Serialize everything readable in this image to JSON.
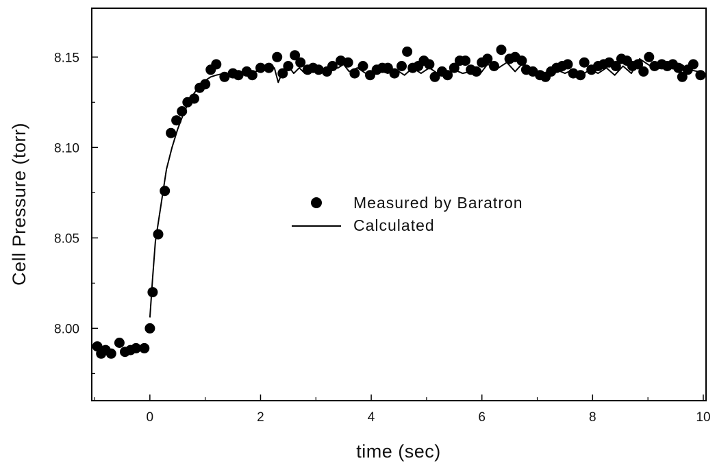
{
  "chart_data": {
    "type": "scatter",
    "title": "",
    "xlabel": "time (sec)",
    "ylabel": "Cell Pressure (torr)",
    "xlim": [
      -1.05,
      10.05
    ],
    "ylim": [
      7.96,
      8.177
    ],
    "x_ticks": [
      0,
      2,
      4,
      6,
      8,
      10
    ],
    "x_tick_labels": [
      "0",
      "2",
      "4",
      "6",
      "8",
      "10"
    ],
    "y_ticks": [
      8.0,
      8.05,
      8.1,
      8.15
    ],
    "y_tick_labels": [
      "8.00",
      "8.05",
      "8.10",
      "8.15"
    ],
    "grid": false,
    "legend_position": "center",
    "series": [
      {
        "name": "Measured by Baratron",
        "kind": "scatter",
        "color": "#000000",
        "points": [
          [
            -0.95,
            7.99
          ],
          [
            -0.88,
            7.986
          ],
          [
            -0.8,
            7.988
          ],
          [
            -0.7,
            7.986
          ],
          [
            -0.55,
            7.992
          ],
          [
            -0.45,
            7.987
          ],
          [
            -0.35,
            7.988
          ],
          [
            -0.25,
            7.989
          ],
          [
            -0.1,
            7.989
          ],
          [
            0.0,
            8.0
          ],
          [
            0.05,
            8.02
          ],
          [
            0.15,
            8.052
          ],
          [
            0.27,
            8.076
          ],
          [
            0.38,
            8.108
          ],
          [
            0.48,
            8.115
          ],
          [
            0.58,
            8.12
          ],
          [
            0.68,
            8.125
          ],
          [
            0.8,
            8.127
          ],
          [
            0.9,
            8.133
          ],
          [
            1.0,
            8.135
          ],
          [
            1.1,
            8.143
          ],
          [
            1.2,
            8.146
          ],
          [
            1.35,
            8.139
          ],
          [
            1.5,
            8.141
          ],
          [
            1.6,
            8.14
          ],
          [
            1.75,
            8.142
          ],
          [
            1.85,
            8.14
          ],
          [
            2.0,
            8.144
          ],
          [
            2.15,
            8.144
          ],
          [
            2.3,
            8.15
          ],
          [
            2.4,
            8.141
          ],
          [
            2.5,
            8.145
          ],
          [
            2.62,
            8.151
          ],
          [
            2.72,
            8.147
          ],
          [
            2.85,
            8.143
          ],
          [
            2.95,
            8.144
          ],
          [
            3.05,
            8.143
          ],
          [
            3.2,
            8.142
          ],
          [
            3.3,
            8.145
          ],
          [
            3.45,
            8.148
          ],
          [
            3.58,
            8.147
          ],
          [
            3.7,
            8.141
          ],
          [
            3.85,
            8.145
          ],
          [
            3.98,
            8.14
          ],
          [
            4.1,
            8.143
          ],
          [
            4.2,
            8.144
          ],
          [
            4.3,
            8.144
          ],
          [
            4.42,
            8.141
          ],
          [
            4.55,
            8.145
          ],
          [
            4.65,
            8.153
          ],
          [
            4.75,
            8.144
          ],
          [
            4.85,
            8.145
          ],
          [
            4.95,
            8.148
          ],
          [
            5.05,
            8.146
          ],
          [
            5.15,
            8.139
          ],
          [
            5.28,
            8.142
          ],
          [
            5.38,
            8.14
          ],
          [
            5.5,
            8.144
          ],
          [
            5.6,
            8.148
          ],
          [
            5.7,
            8.148
          ],
          [
            5.8,
            8.143
          ],
          [
            5.9,
            8.142
          ],
          [
            6.0,
            8.147
          ],
          [
            6.1,
            8.149
          ],
          [
            6.22,
            8.145
          ],
          [
            6.35,
            8.154
          ],
          [
            6.5,
            8.149
          ],
          [
            6.6,
            8.15
          ],
          [
            6.72,
            8.148
          ],
          [
            6.8,
            8.143
          ],
          [
            6.92,
            8.142
          ],
          [
            7.05,
            8.14
          ],
          [
            7.15,
            8.139
          ],
          [
            7.25,
            8.142
          ],
          [
            7.35,
            8.144
          ],
          [
            7.45,
            8.145
          ],
          [
            7.55,
            8.146
          ],
          [
            7.65,
            8.141
          ],
          [
            7.78,
            8.14
          ],
          [
            7.85,
            8.147
          ],
          [
            7.98,
            8.143
          ],
          [
            8.1,
            8.145
          ],
          [
            8.2,
            8.146
          ],
          [
            8.3,
            8.147
          ],
          [
            8.42,
            8.145
          ],
          [
            8.52,
            8.149
          ],
          [
            8.62,
            8.148
          ],
          [
            8.72,
            8.145
          ],
          [
            8.82,
            8.146
          ],
          [
            8.92,
            8.142
          ],
          [
            9.02,
            8.15
          ],
          [
            9.12,
            8.145
          ],
          [
            9.25,
            8.146
          ],
          [
            9.35,
            8.145
          ],
          [
            9.45,
            8.146
          ],
          [
            9.55,
            8.144
          ],
          [
            9.62,
            8.139
          ],
          [
            9.72,
            8.143
          ],
          [
            9.82,
            8.146
          ],
          [
            9.95,
            8.14
          ]
        ]
      },
      {
        "name": "Calculated",
        "kind": "line",
        "color": "#000000",
        "points": [
          [
            0.0,
            8.006
          ],
          [
            0.05,
            8.028
          ],
          [
            0.1,
            8.048
          ],
          [
            0.2,
            8.068
          ],
          [
            0.3,
            8.088
          ],
          [
            0.4,
            8.1
          ],
          [
            0.5,
            8.11
          ],
          [
            0.6,
            8.118
          ],
          [
            0.7,
            8.125
          ],
          [
            0.8,
            8.13
          ],
          [
            0.9,
            8.134
          ],
          [
            1.0,
            8.137
          ],
          [
            1.1,
            8.139
          ],
          [
            1.2,
            8.14
          ],
          [
            1.35,
            8.141
          ],
          [
            1.5,
            8.141
          ],
          [
            1.7,
            8.142
          ],
          [
            1.9,
            8.142
          ],
          [
            2.1,
            8.143
          ],
          [
            2.25,
            8.144
          ],
          [
            2.32,
            8.136
          ],
          [
            2.4,
            8.142
          ],
          [
            2.5,
            8.145
          ],
          [
            2.6,
            8.141
          ],
          [
            2.7,
            8.144
          ],
          [
            2.8,
            8.141
          ],
          [
            2.9,
            8.145
          ],
          [
            3.0,
            8.143
          ],
          [
            3.2,
            8.143
          ],
          [
            3.4,
            8.144
          ],
          [
            3.5,
            8.146
          ],
          [
            3.6,
            8.142
          ],
          [
            3.75,
            8.144
          ],
          [
            3.9,
            8.141
          ],
          [
            4.1,
            8.143
          ],
          [
            4.3,
            8.141
          ],
          [
            4.45,
            8.143
          ],
          [
            4.6,
            8.14
          ],
          [
            4.75,
            8.144
          ],
          [
            4.9,
            8.141
          ],
          [
            5.05,
            8.144
          ],
          [
            5.2,
            8.141
          ],
          [
            5.35,
            8.14
          ],
          [
            5.5,
            8.143
          ],
          [
            5.65,
            8.141
          ],
          [
            5.8,
            8.142
          ],
          [
            5.95,
            8.14
          ],
          [
            6.1,
            8.146
          ],
          [
            6.3,
            8.144
          ],
          [
            6.45,
            8.147
          ],
          [
            6.6,
            8.142
          ],
          [
            6.75,
            8.147
          ],
          [
            6.9,
            8.141
          ],
          [
            7.05,
            8.142
          ],
          [
            7.2,
            8.14
          ],
          [
            7.35,
            8.143
          ],
          [
            7.5,
            8.141
          ],
          [
            7.65,
            8.143
          ],
          [
            7.8,
            8.14
          ],
          [
            7.95,
            8.143
          ],
          [
            8.1,
            8.141
          ],
          [
            8.25,
            8.144
          ],
          [
            8.4,
            8.14
          ],
          [
            8.55,
            8.145
          ],
          [
            8.7,
            8.141
          ],
          [
            8.85,
            8.149
          ],
          [
            9.0,
            8.146
          ],
          [
            9.15,
            8.143
          ],
          [
            9.3,
            8.145
          ],
          [
            9.45,
            8.144
          ],
          [
            9.6,
            8.146
          ],
          [
            9.75,
            8.143
          ],
          [
            9.9,
            8.142
          ],
          [
            10.0,
            8.142
          ]
        ]
      }
    ]
  }
}
